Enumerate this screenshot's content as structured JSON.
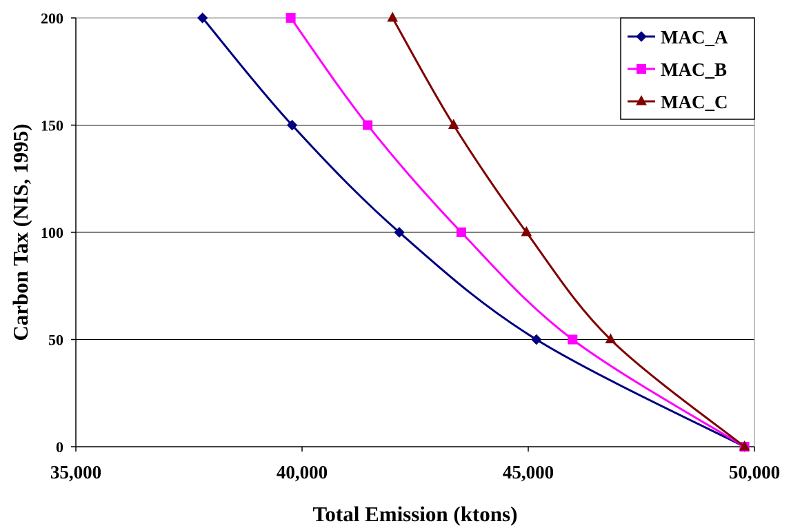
{
  "chart_data": {
    "type": "line",
    "title": "",
    "xlabel": "Total Emission (ktons)",
    "ylabel": "Carbon Tax (NIS, 1995)",
    "xlim": [
      35000,
      50000
    ],
    "ylim": [
      0,
      200
    ],
    "x_ticks": [
      "35,000",
      "40,000",
      "45,000",
      "50,000"
    ],
    "y_ticks": [
      "0",
      "50",
      "100",
      "150",
      "200"
    ],
    "grid": "horizontal",
    "legend_position": "top-right",
    "series": [
      {
        "name": "MAC_A",
        "color": "#000080",
        "marker": "diamond",
        "x": [
          49780,
          45180,
          42150,
          39780,
          37800
        ],
        "y": [
          0,
          50,
          100,
          150,
          200
        ]
      },
      {
        "name": "MAC_B",
        "color": "#FF00FF",
        "marker": "square",
        "x": [
          49780,
          45980,
          43520,
          41450,
          39750
        ],
        "y": [
          0,
          50,
          100,
          150,
          200
        ]
      },
      {
        "name": "MAC_C",
        "color": "#800000",
        "marker": "triangle",
        "x": [
          49780,
          46820,
          44960,
          43350,
          42000
        ],
        "y": [
          0,
          50,
          100,
          150,
          200
        ]
      }
    ]
  }
}
